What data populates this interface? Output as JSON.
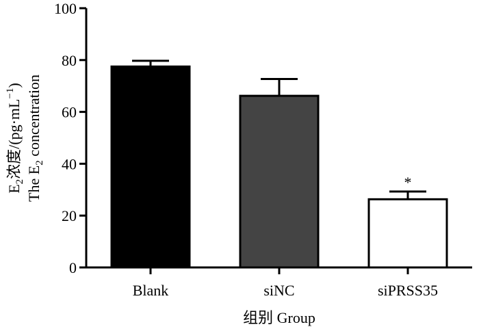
{
  "chart_data": {
    "type": "bar",
    "categories": [
      "Blank",
      "siNC",
      "siPRSS35"
    ],
    "values": [
      77.5,
      66.2,
      26.3
    ],
    "error": [
      2.2,
      6.5,
      3.0
    ],
    "bar_colors": [
      "#000000",
      "#444444",
      "#ffffff"
    ],
    "annotations": [
      "",
      "",
      "*"
    ],
    "ylim": [
      0,
      100
    ],
    "yticks": [
      0,
      20,
      40,
      60,
      80,
      100
    ],
    "xlabel": "组别 Group",
    "ylabel": {
      "line1": {
        "base": "E",
        "sub": "2",
        "rest": "浓度/(pg·mL",
        "sup": "−1",
        "end": ")"
      },
      "line2": {
        "base": "The E",
        "sub": "2",
        "rest": " concentration"
      }
    },
    "grid": false
  }
}
